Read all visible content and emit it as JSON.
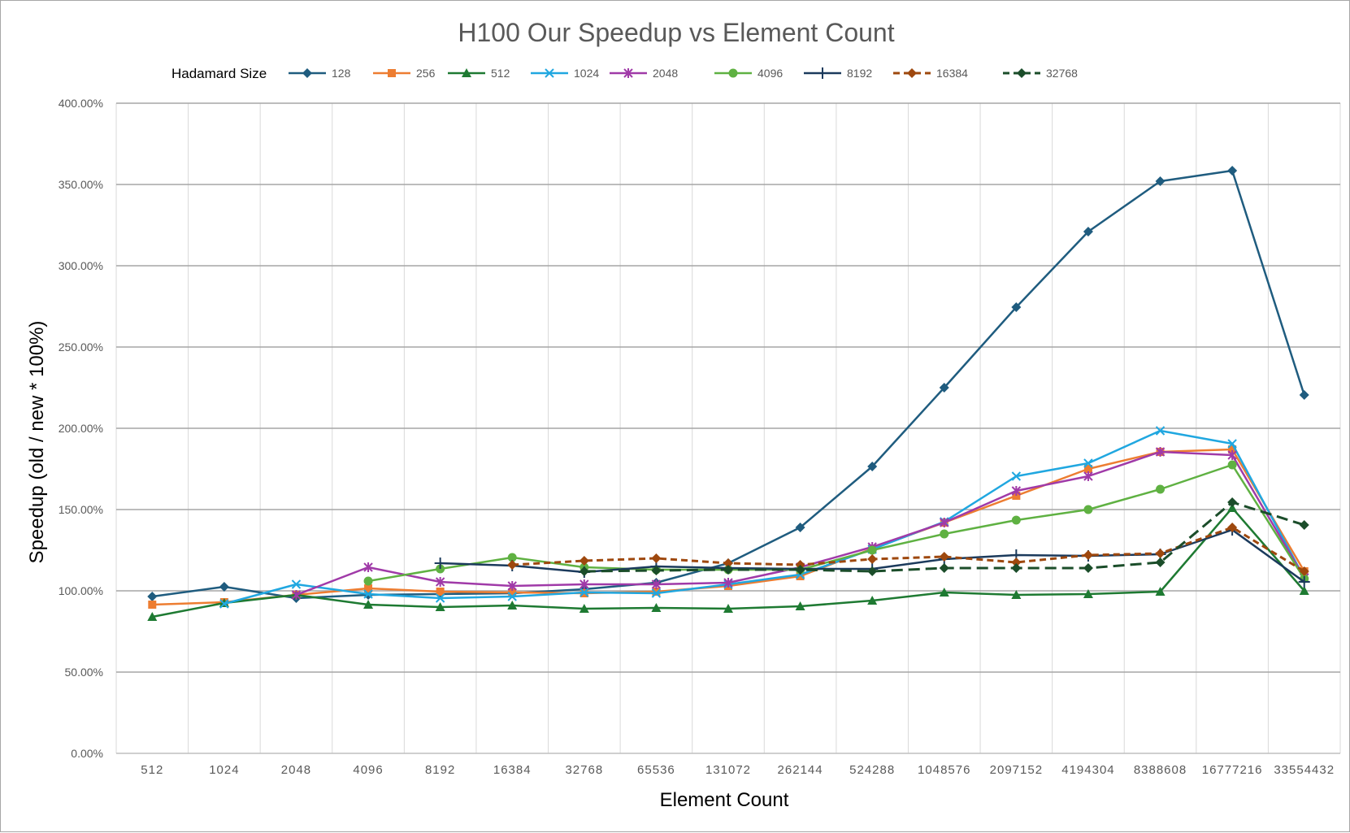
{
  "chart_data": {
    "type": "line",
    "title": "H100 Our Speedup vs Element Count",
    "xlabel": "Element Count",
    "ylabel": "Speedup (old / new * 100%)",
    "legend_title": "Hadamard Size",
    "legend_position": "top",
    "grid": true,
    "ylim": [
      0,
      400
    ],
    "y_ticks": [
      "0.00%",
      "50.00%",
      "100.00%",
      "150.00%",
      "200.00%",
      "250.00%",
      "300.00%",
      "350.00%",
      "400.00%"
    ],
    "categories": [
      "512",
      "1024",
      "2048",
      "4096",
      "8192",
      "16384",
      "32768",
      "65536",
      "131072",
      "262144",
      "524288",
      "1048576",
      "2097152",
      "4194304",
      "8388608",
      "16777216",
      "33554432"
    ],
    "series": [
      {
        "name": "128",
        "color": "#1f5c7f",
        "marker": "diamond",
        "dash": false,
        "values": [
          96.5,
          102.5,
          95.5,
          97.5,
          98,
          98.5,
          101,
          105,
          117,
          139,
          176.5,
          225,
          274.5,
          321,
          352,
          358.5,
          220.5
        ]
      },
      {
        "name": "256",
        "color": "#ed7d31",
        "marker": "square",
        "dash": false,
        "values": [
          91.5,
          93,
          97.5,
          101.5,
          99.5,
          99,
          98.5,
          99.5,
          103,
          109,
          126,
          142,
          158.5,
          175,
          185.5,
          187,
          112
        ]
      },
      {
        "name": "512",
        "color": "#1e7a32",
        "marker": "triangle",
        "dash": false,
        "values": [
          84,
          92.5,
          97.5,
          91.5,
          90,
          91,
          89,
          89.5,
          89,
          90.5,
          94,
          99,
          97.5,
          98,
          99.5,
          151,
          100
        ]
      },
      {
        "name": "1024",
        "color": "#20a7e0",
        "marker": "x",
        "dash": false,
        "values": [
          null,
          92,
          104,
          98,
          95.5,
          96.5,
          99,
          98.5,
          104,
          110,
          125.5,
          142.5,
          170.5,
          178.5,
          198.5,
          190.5,
          108
        ]
      },
      {
        "name": "2048",
        "color": "#a03aa8",
        "marker": "star",
        "dash": false,
        "values": [
          null,
          null,
          97.5,
          114.5,
          105.5,
          103,
          104,
          104,
          105,
          114.5,
          127,
          142,
          161.5,
          170.5,
          185.5,
          183.5,
          108
        ]
      },
      {
        "name": "4096",
        "color": "#5fb142",
        "marker": "circle",
        "dash": false,
        "values": [
          null,
          null,
          null,
          106,
          113.5,
          120.5,
          114.5,
          113,
          113,
          113,
          125,
          135,
          143.5,
          150,
          162.5,
          177.5,
          107.5
        ]
      },
      {
        "name": "8192",
        "color": "#1b3a5c",
        "marker": "plus",
        "dash": false,
        "values": [
          null,
          null,
          null,
          null,
          117,
          115.5,
          111.5,
          115,
          114,
          113.5,
          113.5,
          119.5,
          122,
          121.5,
          122.5,
          137.5,
          105.5
        ]
      },
      {
        "name": "16384",
        "color": "#9e480e",
        "marker": "diamond",
        "dash": true,
        "values": [
          null,
          null,
          null,
          null,
          null,
          116,
          118.5,
          120,
          117,
          116,
          119.5,
          121,
          117.5,
          122,
          123,
          139,
          112
        ]
      },
      {
        "name": "32768",
        "color": "#1b4d2a",
        "marker": "diamond",
        "dash": true,
        "values": [
          null,
          null,
          null,
          null,
          null,
          null,
          112,
          112.5,
          113,
          113,
          112,
          114,
          114,
          114,
          117.5,
          154.5,
          140.5
        ]
      }
    ]
  }
}
